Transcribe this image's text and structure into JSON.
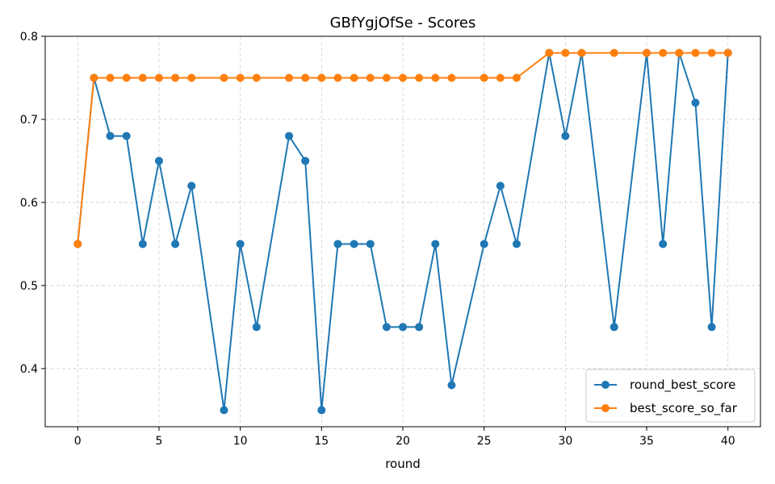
{
  "chart_data": {
    "type": "line",
    "title": "GBfYgjOfSe - Scores",
    "xlabel": "round",
    "ylabel": "",
    "xlim": [
      -2,
      42
    ],
    "ylim": [
      0.33,
      0.8
    ],
    "xticks": [
      0,
      5,
      10,
      15,
      20,
      25,
      30,
      35,
      40
    ],
    "yticks": [
      0.4,
      0.5,
      0.6,
      0.7,
      0.8
    ],
    "grid": true,
    "legend_position": "bottom-right",
    "series": [
      {
        "name": "round_best_score",
        "color": "#1f77b4",
        "x": [
          0,
          1,
          2,
          3,
          4,
          5,
          6,
          7,
          9,
          10,
          11,
          13,
          14,
          15,
          16,
          17,
          18,
          19,
          20,
          21,
          22,
          23,
          25,
          26,
          27,
          29,
          30,
          31,
          33,
          35,
          36,
          37,
          38,
          39,
          40
        ],
        "y": [
          0.55,
          0.75,
          0.68,
          0.68,
          0.55,
          0.65,
          0.55,
          0.62,
          0.35,
          0.55,
          0.45,
          0.68,
          0.65,
          0.35,
          0.55,
          0.55,
          0.55,
          0.45,
          0.45,
          0.45,
          0.55,
          0.38,
          0.55,
          0.62,
          0.55,
          0.78,
          0.68,
          0.78,
          0.45,
          0.78,
          0.55,
          0.78,
          0.72,
          0.45,
          0.78
        ]
      },
      {
        "name": "best_score_so_far",
        "color": "#ff7f0e",
        "x": [
          0,
          1,
          2,
          3,
          4,
          5,
          6,
          7,
          9,
          10,
          11,
          13,
          14,
          15,
          16,
          17,
          18,
          19,
          20,
          21,
          22,
          23,
          25,
          26,
          27,
          29,
          30,
          31,
          33,
          35,
          36,
          37,
          38,
          39,
          40
        ],
        "y": [
          0.55,
          0.75,
          0.75,
          0.75,
          0.75,
          0.75,
          0.75,
          0.75,
          0.75,
          0.75,
          0.75,
          0.75,
          0.75,
          0.75,
          0.75,
          0.75,
          0.75,
          0.75,
          0.75,
          0.75,
          0.75,
          0.75,
          0.75,
          0.75,
          0.75,
          0.78,
          0.78,
          0.78,
          0.78,
          0.78,
          0.78,
          0.78,
          0.78,
          0.78,
          0.78
        ]
      }
    ]
  }
}
